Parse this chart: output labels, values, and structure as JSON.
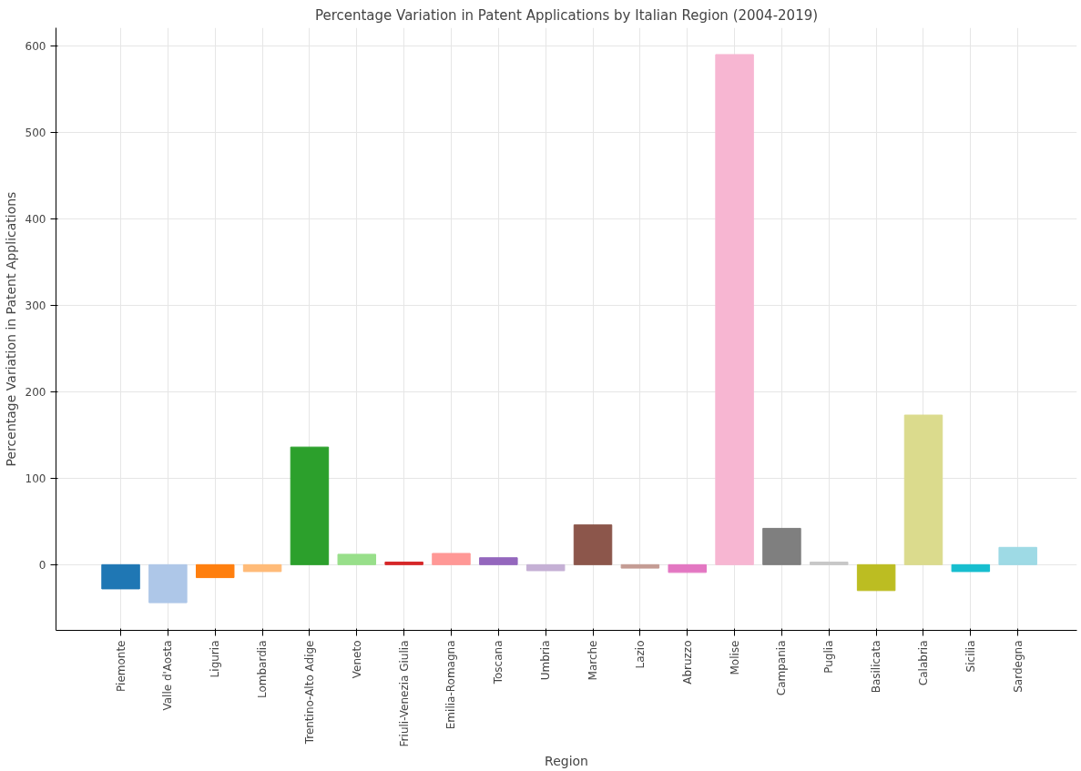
{
  "chart_data": {
    "type": "bar",
    "title": "Percentage Variation in Patent Applications by Italian Region (2004-2019)",
    "xlabel": "Region",
    "ylabel": "Percentage Variation in Patent Applications",
    "categories": [
      "Piemonte",
      "Valle d'Aosta",
      "Liguria",
      "Lombardia",
      "Trentino-Alto Adige",
      "Veneto",
      "Friuli-Venezia Giulia",
      "Emilia-Romagna",
      "Toscana",
      "Umbria",
      "Marche",
      "Lazio",
      "Abruzzo",
      "Molise",
      "Campania",
      "Puglia",
      "Basilicata",
      "Calabria",
      "Sicilia",
      "Sardegna"
    ],
    "values": [
      -28,
      -44,
      -15,
      -8,
      136,
      12,
      3,
      13,
      8,
      -7,
      46,
      -4,
      -9,
      590,
      42,
      3,
      -30,
      173,
      -8,
      20
    ],
    "colors": [
      "#1f77b4",
      "#aec7e8",
      "#ff7f0e",
      "#ffbb78",
      "#2ca02c",
      "#98df8a",
      "#d62728",
      "#ff9896",
      "#9467bd",
      "#c5b0d5",
      "#8c564b",
      "#c49c94",
      "#e377c2",
      "#f7b6d2",
      "#7f7f7f",
      "#c7c7c7",
      "#bcbd22",
      "#dbdb8d",
      "#17becf",
      "#9edae5"
    ],
    "ylim": [
      -76,
      621
    ],
    "yticks": [
      0,
      100,
      200,
      300,
      400,
      500,
      600
    ],
    "grid": true
  }
}
